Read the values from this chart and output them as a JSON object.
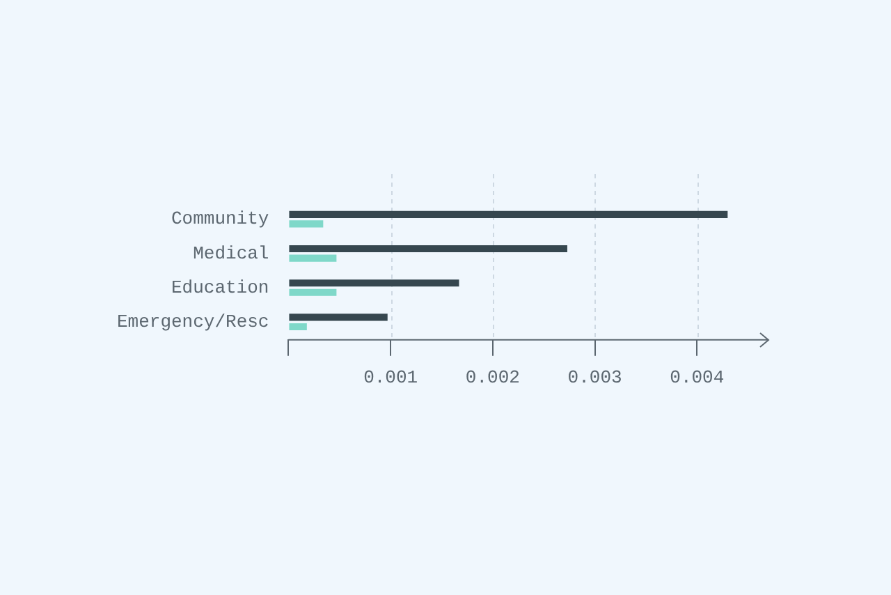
{
  "chart_data": {
    "type": "bar",
    "orientation": "horizontal",
    "categories": [
      "Community",
      "Medical",
      "Education",
      "Emergency/Resc"
    ],
    "series": [
      {
        "color": "#36474f",
        "values": [
          0.0043,
          0.00273,
          0.00167,
          0.00097
        ]
      },
      {
        "color": "#7fd8c9",
        "values": [
          0.00034,
          0.00047,
          0.00047,
          0.00018
        ]
      }
    ],
    "xlim": [
      0,
      0.0047
    ],
    "xticks": [
      {
        "value": 0,
        "label": null
      },
      0.001,
      0.002,
      0.003,
      0.004
    ],
    "grid": "x",
    "legend": false
  }
}
